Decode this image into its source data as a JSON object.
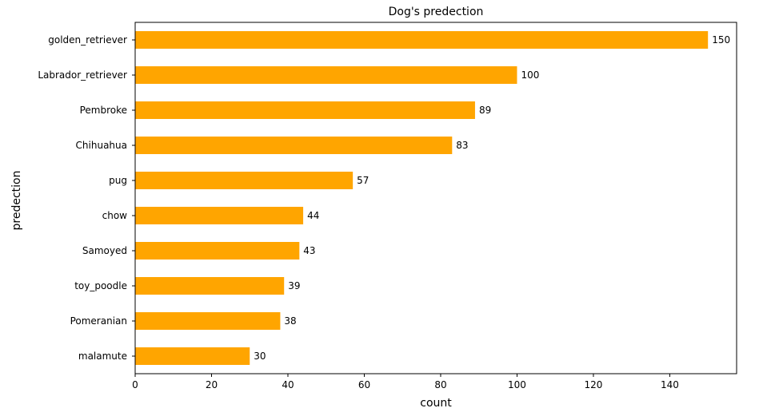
{
  "chart_data": {
    "type": "bar",
    "orientation": "horizontal",
    "title": "Dog's predection",
    "xlabel": "count",
    "ylabel": "predection",
    "categories": [
      "golden_retriever",
      "Labrador_retriever",
      "Pembroke",
      "Chihuahua",
      "pug",
      "chow",
      "Samoyed",
      "toy_poodle",
      "Pomeranian",
      "malamute"
    ],
    "values": [
      150,
      100,
      89,
      83,
      57,
      44,
      43,
      39,
      38,
      30
    ],
    "xlim": [
      0,
      157.5
    ],
    "xticks": [
      0,
      20,
      40,
      60,
      80,
      100,
      120,
      140
    ],
    "bar_color": "#FFA500",
    "data_labels": true,
    "grid": false,
    "legend": false
  }
}
